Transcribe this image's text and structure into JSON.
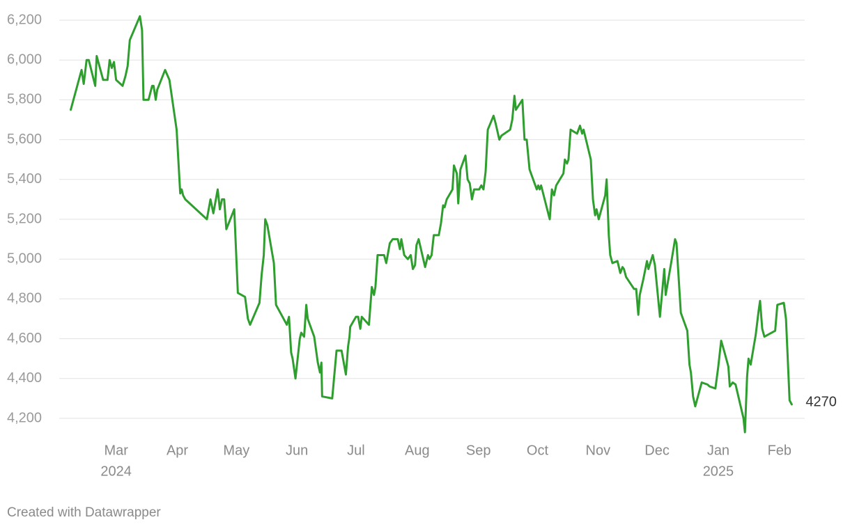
{
  "chart_data": {
    "type": "line",
    "color": "#2e9e2e",
    "grid": true,
    "credit": "Created with Datawrapper",
    "xlim": [
      2024.085,
      2025.12
    ],
    "ylim": [
      4100,
      6250
    ],
    "yticks": [
      {
        "value": 4200,
        "label": "4,200"
      },
      {
        "value": 4400,
        "label": "4,400"
      },
      {
        "value": 4600,
        "label": "4,600"
      },
      {
        "value": 4800,
        "label": "4,800"
      },
      {
        "value": 5000,
        "label": "5,000"
      },
      {
        "value": 5200,
        "label": "5,200"
      },
      {
        "value": 5400,
        "label": "5,400"
      },
      {
        "value": 5600,
        "label": "5,600"
      },
      {
        "value": 5800,
        "label": "5,800"
      },
      {
        "value": 6000,
        "label": "6,000"
      },
      {
        "value": 6200,
        "label": "6,200"
      }
    ],
    "xticks": [
      {
        "value": 2024.164,
        "label": "Mar"
      },
      {
        "value": 2024.249,
        "label": "Apr"
      },
      {
        "value": 2024.331,
        "label": "May"
      },
      {
        "value": 2024.415,
        "label": "Jun"
      },
      {
        "value": 2024.497,
        "label": "Jul"
      },
      {
        "value": 2024.582,
        "label": "Aug"
      },
      {
        "value": 2024.667,
        "label": "Sep"
      },
      {
        "value": 2024.749,
        "label": "Oct"
      },
      {
        "value": 2024.833,
        "label": "Nov"
      },
      {
        "value": 2024.915,
        "label": "Dec"
      },
      {
        "value": 2025.0,
        "label": "Jan"
      },
      {
        "value": 2025.085,
        "label": "Feb"
      }
    ],
    "x_year_labels": [
      {
        "value": 2024.164,
        "label": "2024"
      },
      {
        "value": 2025.0,
        "label": "2025"
      }
    ],
    "x": [
      2024.101,
      2024.116,
      2024.119,
      2024.123,
      2024.126,
      2024.135,
      2024.137,
      2024.14,
      2024.146,
      2024.152,
      2024.155,
      2024.158,
      2024.161,
      2024.164,
      2024.173,
      2024.177,
      2024.18,
      2024.183,
      2024.197,
      2024.2,
      2024.202,
      2024.209,
      2024.214,
      2024.216,
      2024.219,
      2024.221,
      2024.232,
      2024.238,
      2024.248,
      2024.253,
      2024.255,
      2024.257,
      2024.26,
      2024.29,
      2024.295,
      2024.299,
      2024.305,
      2024.308,
      2024.311,
      2024.314,
      2024.317,
      2024.328,
      2024.333,
      2024.338,
      2024.343,
      2024.347,
      2024.35,
      2024.363,
      2024.366,
      2024.369,
      2024.371,
      2024.374,
      2024.383,
      2024.386,
      2024.389,
      2024.401,
      2024.404,
      2024.407,
      2024.409,
      2024.413,
      2024.419,
      2024.421,
      2024.425,
      2024.428,
      2024.43,
      2024.439,
      2024.444,
      2024.447,
      2024.449,
      2024.45,
      2024.464,
      2024.47,
      2024.477,
      2024.479,
      2024.483,
      2024.486,
      2024.488,
      2024.489,
      2024.497,
      2024.5,
      2024.503,
      2024.505,
      2024.515,
      2024.519,
      2024.522,
      2024.524,
      2024.527,
      2024.536,
      2024.539,
      2024.54,
      2024.544,
      2024.548,
      2024.555,
      2024.558,
      2024.56,
      2024.564,
      2024.569,
      2024.573,
      2024.576,
      2024.579,
      2024.581,
      2024.584,
      2024.593,
      2024.597,
      2024.599,
      2024.602,
      2024.605,
      2024.612,
      2024.615,
      2024.618,
      2024.62,
      2024.623,
      2024.631,
      2024.633,
      2024.637,
      2024.639,
      2024.642,
      2024.649,
      2024.652,
      2024.655,
      2024.658,
      2024.661,
      2024.668,
      2024.671,
      2024.674,
      2024.677,
      2024.68,
      2024.688,
      2024.691,
      2024.696,
      2024.699,
      2024.711,
      2024.714,
      2024.717,
      2024.719,
      2024.728,
      2024.731,
      2024.734,
      2024.738,
      2024.748,
      2024.75,
      2024.752,
      2024.754,
      2024.766,
      2024.769,
      2024.772,
      2024.775,
      2024.785,
      2024.787,
      2024.79,
      2024.792,
      2024.795,
      2024.804,
      2024.808,
      2024.811,
      2024.813,
      2024.823,
      2024.826,
      2024.829,
      2024.831,
      2024.834,
      2024.843,
      2024.845,
      2024.848,
      2024.85,
      2024.853,
      2024.86,
      2024.864,
      2024.867,
      2024.869,
      2024.872,
      2024.883,
      2024.886,
      2024.889,
      2024.891,
      2024.896,
      2024.901,
      2024.903,
      2024.909,
      2024.912,
      2024.919,
      2024.925,
      2024.927,
      2024.935,
      2024.94,
      2024.942,
      2024.948,
      2024.957,
      2024.96,
      2024.962,
      2024.965,
      2024.968,
      2024.977,
      2024.985,
      2024.988,
      2024.996,
      2025.0,
      2025.004,
      2025.008,
      2025.014,
      2025.016,
      2025.02,
      2025.024,
      2025.035,
      2025.037,
      2025.04,
      2025.042,
      2025.045,
      2025.052,
      2025.056,
      2025.058,
      2025.061,
      2025.064,
      2025.079,
      2025.082,
      2025.091,
      2025.094,
      2025.099,
      2025.102
    ],
    "values": [
      5750,
      5950,
      5880,
      6000,
      6000,
      5870,
      6020,
      5980,
      5900,
      5900,
      6000,
      5960,
      5990,
      5900,
      5870,
      5920,
      5970,
      6100,
      6220,
      6150,
      5800,
      5800,
      5870,
      5870,
      5800,
      5850,
      5950,
      5900,
      5650,
      5330,
      5350,
      5320,
      5300,
      5200,
      5300,
      5230,
      5350,
      5250,
      5300,
      5300,
      5150,
      5250,
      4830,
      4820,
      4810,
      4700,
      4670,
      4780,
      4920,
      5020,
      5200,
      5170,
      4980,
      4770,
      4750,
      4670,
      4710,
      4530,
      4500,
      4400,
      4600,
      4630,
      4610,
      4770,
      4700,
      4610,
      4480,
      4430,
      4480,
      4310,
      4300,
      4540,
      4540,
      4500,
      4420,
      4560,
      4610,
      4660,
      4710,
      4710,
      4650,
      4710,
      4670,
      4860,
      4820,
      4860,
      5020,
      5020,
      4980,
      5000,
      5080,
      5100,
      5100,
      5050,
      5100,
      5020,
      5000,
      5020,
      4950,
      4970,
      5070,
      5100,
      4960,
      5020,
      5000,
      5020,
      5120,
      5120,
      5180,
      5270,
      5260,
      5300,
      5350,
      5470,
      5430,
      5280,
      5450,
      5520,
      5400,
      5380,
      5300,
      5350,
      5350,
      5370,
      5350,
      5440,
      5650,
      5720,
      5680,
      5600,
      5620,
      5650,
      5700,
      5820,
      5750,
      5800,
      5600,
      5600,
      5450,
      5350,
      5370,
      5350,
      5370,
      5200,
      5350,
      5320,
      5370,
      5430,
      5500,
      5480,
      5500,
      5650,
      5630,
      5670,
      5630,
      5650,
      5500,
      5300,
      5220,
      5250,
      5200,
      5320,
      5400,
      5120,
      5020,
      4980,
      4990,
      4930,
      4960,
      4950,
      4910,
      4850,
      4850,
      4720,
      4820,
      4900,
      4990,
      4950,
      5020,
      4970,
      4710,
      4950,
      4820,
      4990,
      5100,
      5080,
      4730,
      4640,
      4470,
      4430,
      4310,
      4260,
      4380,
      4370,
      4360,
      4350,
      4460,
      4590,
      4540,
      4460,
      4360,
      4380,
      4370,
      4200,
      4130,
      4410,
      4500,
      4470,
      4620,
      4740,
      4790,
      4650,
      4610,
      4640,
      4770,
      4780,
      4700,
      4290,
      4270
    ]
  }
}
